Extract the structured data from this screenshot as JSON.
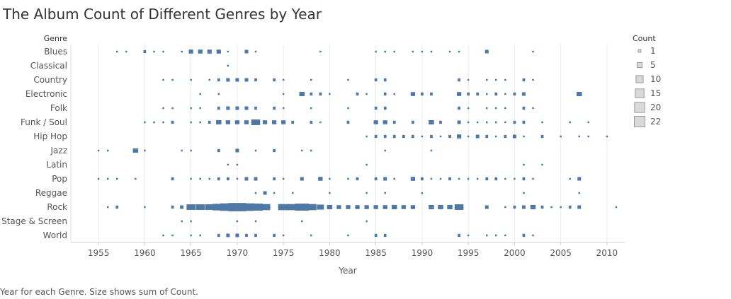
{
  "title": "The Album Count of Different Genres by Year",
  "caption": "Year for each Genre.  Size shows sum of Count.",
  "chart_data": {
    "type": "scatter",
    "title": "The Album Count of Different Genres by Year",
    "row_header": "Genre",
    "xlabel": "Year",
    "xlim": [
      1952,
      2012
    ],
    "x_ticks": [
      1955,
      1960,
      1965,
      1970,
      1975,
      1980,
      1985,
      1990,
      1995,
      2000,
      2005,
      2010
    ],
    "categories": [
      "Blues",
      "Classical",
      "Country",
      "Electronic",
      "Folk",
      "Funk / Soul",
      "Hip Hop",
      "Jazz",
      "Latin",
      "Pop",
      "Reggae",
      "Rock",
      "Stage & Screen",
      "World"
    ],
    "mark_color": "#4e79a7",
    "grid": true,
    "size_legend": {
      "title": "Count",
      "position": "right",
      "values": [
        1,
        5,
        10,
        15,
        20,
        22
      ]
    },
    "series": [
      {
        "category": "Blues",
        "points": [
          [
            1957,
            1
          ],
          [
            1958,
            1
          ],
          [
            1960,
            3
          ],
          [
            1961,
            1
          ],
          [
            1962,
            1
          ],
          [
            1964,
            1
          ],
          [
            1965,
            5
          ],
          [
            1966,
            5
          ],
          [
            1967,
            5
          ],
          [
            1968,
            5
          ],
          [
            1969,
            1
          ],
          [
            1971,
            4
          ],
          [
            1972,
            1
          ],
          [
            1979,
            1
          ],
          [
            1985,
            1
          ],
          [
            1986,
            1
          ],
          [
            1987,
            1
          ],
          [
            1989,
            1
          ],
          [
            1990,
            1
          ],
          [
            1991,
            1
          ],
          [
            1993,
            1
          ],
          [
            1994,
            1
          ],
          [
            1997,
            4
          ],
          [
            2002,
            1
          ]
        ]
      },
      {
        "category": "Classical",
        "points": [
          [
            1969,
            1
          ]
        ]
      },
      {
        "category": "Country",
        "points": [
          [
            1962,
            1
          ],
          [
            1963,
            1
          ],
          [
            1965,
            1
          ],
          [
            1967,
            1
          ],
          [
            1968,
            3
          ],
          [
            1969,
            4
          ],
          [
            1970,
            4
          ],
          [
            1971,
            4
          ],
          [
            1972,
            3
          ],
          [
            1974,
            3
          ],
          [
            1975,
            1
          ],
          [
            1978,
            1
          ],
          [
            1982,
            1
          ],
          [
            1985,
            3
          ],
          [
            1986,
            3
          ],
          [
            1994,
            3
          ],
          [
            1995,
            1
          ],
          [
            1997,
            1
          ],
          [
            1998,
            1
          ],
          [
            1999,
            1
          ],
          [
            2001,
            3
          ],
          [
            2002,
            1
          ]
        ]
      },
      {
        "category": "Electronic",
        "points": [
          [
            1966,
            1
          ],
          [
            1968,
            1
          ],
          [
            1975,
            1
          ],
          [
            1977,
            6
          ],
          [
            1978,
            3
          ],
          [
            1979,
            3
          ],
          [
            1980,
            1
          ],
          [
            1983,
            3
          ],
          [
            1984,
            1
          ],
          [
            1986,
            3
          ],
          [
            1987,
            1
          ],
          [
            1989,
            5
          ],
          [
            1990,
            3
          ],
          [
            1991,
            3
          ],
          [
            1994,
            5
          ],
          [
            1995,
            3
          ],
          [
            1996,
            3
          ],
          [
            1997,
            1
          ],
          [
            1998,
            3
          ],
          [
            1999,
            1
          ],
          [
            2000,
            3
          ],
          [
            2001,
            4
          ],
          [
            2007,
            6
          ]
        ]
      },
      {
        "category": "Folk",
        "points": [
          [
            1962,
            1
          ],
          [
            1963,
            1
          ],
          [
            1965,
            1
          ],
          [
            1966,
            1
          ],
          [
            1968,
            3
          ],
          [
            1969,
            4
          ],
          [
            1970,
            4
          ],
          [
            1971,
            4
          ],
          [
            1972,
            3
          ],
          [
            1974,
            3
          ],
          [
            1975,
            1
          ],
          [
            1978,
            1
          ],
          [
            1982,
            1
          ],
          [
            1985,
            3
          ],
          [
            1986,
            3
          ],
          [
            1994,
            3
          ],
          [
            1995,
            1
          ],
          [
            1997,
            1
          ],
          [
            1998,
            1
          ],
          [
            1999,
            1
          ],
          [
            2001,
            3
          ],
          [
            2002,
            1
          ]
        ]
      },
      {
        "category": "Funk / Soul",
        "points": [
          [
            1960,
            1
          ],
          [
            1961,
            1
          ],
          [
            1962,
            1
          ],
          [
            1963,
            3
          ],
          [
            1965,
            1
          ],
          [
            1966,
            1
          ],
          [
            1967,
            3
          ],
          [
            1968,
            6
          ],
          [
            1969,
            5
          ],
          [
            1970,
            5
          ],
          [
            1971,
            5
          ],
          [
            1972,
            10
          ],
          [
            1973,
            5
          ],
          [
            1974,
            5
          ],
          [
            1975,
            5
          ],
          [
            1976,
            3
          ],
          [
            1978,
            3
          ],
          [
            1979,
            1
          ],
          [
            1982,
            3
          ],
          [
            1985,
            5
          ],
          [
            1986,
            5
          ],
          [
            1987,
            3
          ],
          [
            1989,
            3
          ],
          [
            1991,
            6
          ],
          [
            1992,
            3
          ],
          [
            1994,
            4
          ],
          [
            1995,
            1
          ],
          [
            1996,
            1
          ],
          [
            1997,
            1
          ],
          [
            1998,
            1
          ],
          [
            1999,
            1
          ],
          [
            2000,
            3
          ],
          [
            2001,
            3
          ],
          [
            2003,
            1
          ],
          [
            2006,
            1
          ],
          [
            2008,
            1
          ]
        ]
      },
      {
        "category": "Hip Hop",
        "points": [
          [
            1984,
            1
          ],
          [
            1985,
            3
          ],
          [
            1986,
            3
          ],
          [
            1987,
            3
          ],
          [
            1988,
            3
          ],
          [
            1989,
            3
          ],
          [
            1990,
            1
          ],
          [
            1991,
            3
          ],
          [
            1992,
            1
          ],
          [
            1993,
            3
          ],
          [
            1994,
            5
          ],
          [
            1995,
            1
          ],
          [
            1996,
            4
          ],
          [
            1997,
            3
          ],
          [
            1998,
            1
          ],
          [
            1999,
            3
          ],
          [
            2000,
            4
          ],
          [
            2001,
            1
          ],
          [
            2003,
            3
          ],
          [
            2005,
            1
          ],
          [
            2007,
            1
          ],
          [
            2008,
            1
          ],
          [
            2010,
            1
          ]
        ]
      },
      {
        "category": "Jazz",
        "points": [
          [
            1955,
            1
          ],
          [
            1956,
            1
          ],
          [
            1959,
            6
          ],
          [
            1960,
            1
          ],
          [
            1964,
            1
          ],
          [
            1965,
            1
          ],
          [
            1968,
            3
          ],
          [
            1970,
            4
          ],
          [
            1972,
            1
          ],
          [
            1974,
            3
          ],
          [
            1977,
            1
          ],
          [
            1978,
            1
          ],
          [
            1986,
            1
          ],
          [
            1991,
            1
          ]
        ]
      },
      {
        "category": "Latin",
        "points": [
          [
            1969,
            1
          ],
          [
            1970,
            1
          ],
          [
            1984,
            1
          ],
          [
            2001,
            1
          ],
          [
            2003,
            1
          ]
        ]
      },
      {
        "category": "Pop",
        "points": [
          [
            1955,
            1
          ],
          [
            1956,
            1
          ],
          [
            1957,
            1
          ],
          [
            1959,
            1
          ],
          [
            1963,
            3
          ],
          [
            1965,
            1
          ],
          [
            1966,
            1
          ],
          [
            1967,
            1
          ],
          [
            1968,
            3
          ],
          [
            1969,
            3
          ],
          [
            1970,
            1
          ],
          [
            1971,
            4
          ],
          [
            1972,
            4
          ],
          [
            1974,
            3
          ],
          [
            1975,
            1
          ],
          [
            1977,
            4
          ],
          [
            1979,
            5
          ],
          [
            1980,
            1
          ],
          [
            1982,
            1
          ],
          [
            1983,
            3
          ],
          [
            1985,
            3
          ],
          [
            1986,
            4
          ],
          [
            1987,
            1
          ],
          [
            1989,
            5
          ],
          [
            1990,
            3
          ],
          [
            1991,
            1
          ],
          [
            1992,
            1
          ],
          [
            1993,
            3
          ],
          [
            1994,
            1
          ],
          [
            1995,
            1
          ],
          [
            1996,
            1
          ],
          [
            1997,
            3
          ],
          [
            1998,
            3
          ],
          [
            1999,
            1
          ],
          [
            2000,
            1
          ],
          [
            2001,
            3
          ],
          [
            2002,
            1
          ],
          [
            2006,
            1
          ],
          [
            2007,
            4
          ]
        ]
      },
      {
        "category": "Reggae",
        "points": [
          [
            1972,
            1
          ],
          [
            1973,
            4
          ],
          [
            1974,
            1
          ],
          [
            1976,
            1
          ],
          [
            1980,
            1
          ],
          [
            1984,
            1
          ],
          [
            1986,
            1
          ],
          [
            1990,
            1
          ],
          [
            2001,
            1
          ],
          [
            2007,
            1
          ]
        ]
      },
      {
        "category": "Rock",
        "points": [
          [
            1956,
            1
          ],
          [
            1957,
            3
          ],
          [
            1960,
            1
          ],
          [
            1963,
            3
          ],
          [
            1964,
            4
          ],
          [
            1965,
            10
          ],
          [
            1966,
            10
          ],
          [
            1967,
            10
          ],
          [
            1968,
            14
          ],
          [
            1969,
            18
          ],
          [
            1970,
            22
          ],
          [
            1971,
            18
          ],
          [
            1972,
            16
          ],
          [
            1973,
            12
          ],
          [
            1975,
            12
          ],
          [
            1976,
            12
          ],
          [
            1977,
            16
          ],
          [
            1978,
            12
          ],
          [
            1979,
            8
          ],
          [
            1980,
            6
          ],
          [
            1981,
            5
          ],
          [
            1982,
            5
          ],
          [
            1983,
            5
          ],
          [
            1984,
            5
          ],
          [
            1985,
            5
          ],
          [
            1986,
            5
          ],
          [
            1987,
            6
          ],
          [
            1988,
            5
          ],
          [
            1989,
            5
          ],
          [
            1991,
            6
          ],
          [
            1992,
            6
          ],
          [
            1993,
            6
          ],
          [
            1994,
            10
          ],
          [
            1997,
            4
          ],
          [
            1999,
            1
          ],
          [
            2000,
            3
          ],
          [
            2001,
            4
          ],
          [
            2002,
            6
          ],
          [
            2003,
            3
          ],
          [
            2004,
            1
          ],
          [
            2005,
            1
          ],
          [
            2006,
            3
          ],
          [
            2007,
            4
          ],
          [
            2011,
            1
          ]
        ]
      },
      {
        "category": "Stage & Screen",
        "points": [
          [
            1964,
            1
          ],
          [
            1965,
            1
          ],
          [
            1970,
            1
          ],
          [
            1972,
            1
          ],
          [
            1977,
            1
          ],
          [
            1984,
            1
          ]
        ]
      },
      {
        "category": "World",
        "points": [
          [
            1962,
            1
          ],
          [
            1963,
            1
          ],
          [
            1965,
            1
          ],
          [
            1966,
            1
          ],
          [
            1968,
            3
          ],
          [
            1969,
            4
          ],
          [
            1970,
            4
          ],
          [
            1971,
            3
          ],
          [
            1972,
            3
          ],
          [
            1974,
            3
          ],
          [
            1975,
            1
          ],
          [
            1978,
            1
          ],
          [
            1982,
            1
          ],
          [
            1985,
            3
          ],
          [
            1986,
            3
          ],
          [
            1994,
            3
          ],
          [
            1995,
            1
          ],
          [
            1997,
            1
          ],
          [
            1998,
            1
          ],
          [
            1999,
            1
          ],
          [
            2001,
            3
          ],
          [
            2002,
            1
          ]
        ]
      }
    ]
  }
}
